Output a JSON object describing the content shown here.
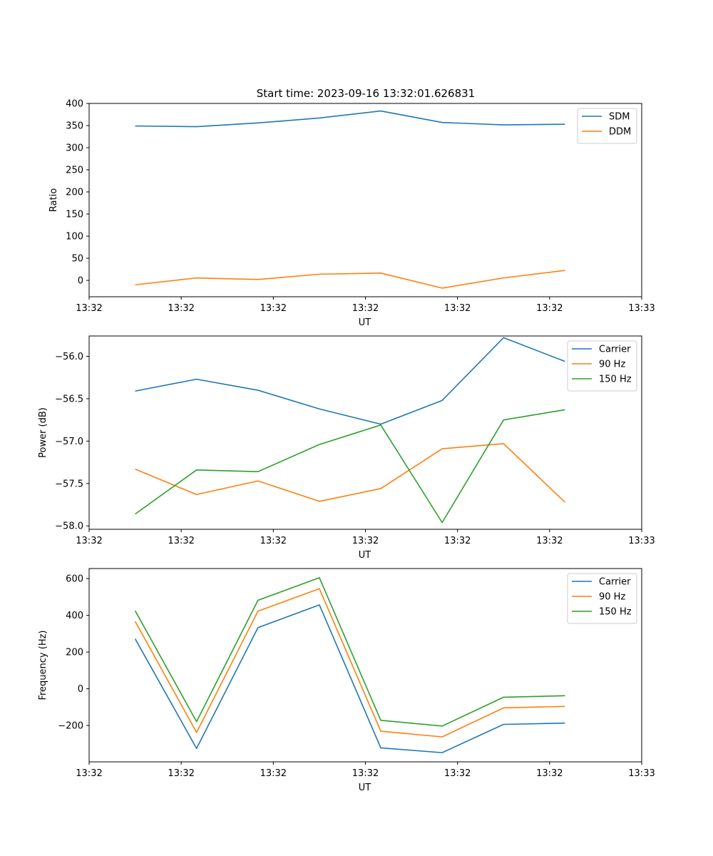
{
  "figure_title": "Start time: 2023-09-16 13:32:01.626831",
  "chart_data": [
    {
      "type": "line",
      "title": "Start time: 2023-09-16 13:32:01.626831",
      "xlabel": "UT",
      "ylabel": "Ratio",
      "x": [
        0,
        1,
        2,
        3,
        4,
        5,
        6,
        7
      ],
      "xlim": [
        -0.75,
        8.25
      ],
      "x_ticks": [
        -0.75,
        0.75,
        2.25,
        3.75,
        5.25,
        6.75,
        8.25
      ],
      "x_tick_labels": [
        "13:32",
        "13:32",
        "13:32",
        "13:32",
        "13:32",
        "13:32",
        "13:33"
      ],
      "ylim": [
        -37,
        400
      ],
      "y_ticks": [
        0,
        50,
        100,
        150,
        200,
        250,
        300,
        350,
        400
      ],
      "y_tick_labels": [
        "0",
        "50",
        "100",
        "150",
        "200",
        "250",
        "300",
        "350",
        "400"
      ],
      "legend_position": "top-right",
      "grid": false,
      "series": [
        {
          "name": "SDM",
          "color": "#1f77b4",
          "values": [
            349,
            347.5,
            356,
            367,
            383,
            357,
            351.5,
            353
          ]
        },
        {
          "name": "DDM",
          "color": "#ff7f0e",
          "values": [
            -10,
            5.5,
            2,
            14,
            16.5,
            -17.5,
            5.5,
            22.5
          ]
        }
      ]
    },
    {
      "type": "line",
      "xlabel": "UT",
      "ylabel": "Power (dB)",
      "x": [
        0,
        1,
        2,
        3,
        4,
        5,
        6,
        7
      ],
      "xlim": [
        -0.75,
        8.25
      ],
      "x_ticks": [
        -0.75,
        0.75,
        2.25,
        3.75,
        5.25,
        6.75,
        8.25
      ],
      "x_tick_labels": [
        "13:32",
        "13:32",
        "13:32",
        "13:32",
        "13:32",
        "13:32",
        "13:33"
      ],
      "ylim": [
        -58.04,
        -55.76
      ],
      "y_ticks": [
        -58.0,
        -57.5,
        -57.0,
        -56.5,
        -56.0
      ],
      "y_tick_labels": [
        "−58.0",
        "−57.5",
        "−57.0",
        "−56.5",
        "−56.0"
      ],
      "legend_position": "top-right",
      "grid": false,
      "series": [
        {
          "name": "Carrier",
          "color": "#1f77b4",
          "values": [
            -56.41,
            -56.27,
            -56.4,
            -56.62,
            -56.8,
            -56.52,
            -55.78,
            -56.06
          ]
        },
        {
          "name": "90 Hz",
          "color": "#ff7f0e",
          "values": [
            -57.33,
            -57.63,
            -57.47,
            -57.71,
            -57.56,
            -57.09,
            -57.03,
            -57.72
          ]
        },
        {
          "name": "150 Hz",
          "color": "#2ca02c",
          "values": [
            -57.86,
            -57.34,
            -57.36,
            -57.04,
            -56.81,
            -57.96,
            -56.75,
            -56.63
          ]
        }
      ]
    },
    {
      "type": "line",
      "xlabel": "UT",
      "ylabel": "Frequency (Hz)",
      "x": [
        0,
        1,
        2,
        3,
        4,
        5,
        6,
        7
      ],
      "xlim": [
        -0.75,
        8.25
      ],
      "x_ticks": [
        -0.75,
        0.75,
        2.25,
        3.75,
        5.25,
        6.75,
        8.25
      ],
      "x_tick_labels": [
        "13:32",
        "13:32",
        "13:32",
        "13:32",
        "13:32",
        "13:32",
        "13:33"
      ],
      "ylim": [
        -398,
        655
      ],
      "y_ticks": [
        -200,
        0,
        200,
        400,
        600
      ],
      "y_tick_labels": [
        "−200",
        "0",
        "200",
        "400",
        "600"
      ],
      "legend_position": "top-right",
      "grid": false,
      "series": [
        {
          "name": "Carrier",
          "color": "#1f77b4",
          "values": [
            272,
            -325,
            333,
            457,
            -322,
            -348,
            -194,
            -187
          ]
        },
        {
          "name": "90 Hz",
          "color": "#ff7f0e",
          "values": [
            367,
            -238,
            423,
            545,
            -231,
            -262,
            -104,
            -96
          ]
        },
        {
          "name": "150 Hz",
          "color": "#2ca02c",
          "values": [
            425,
            -179,
            482,
            605,
            -172,
            -203,
            -46,
            -38
          ]
        }
      ]
    }
  ]
}
